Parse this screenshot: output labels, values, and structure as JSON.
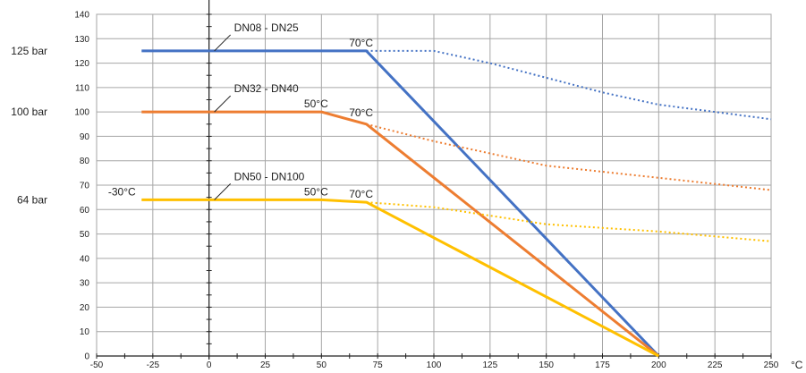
{
  "chart_data": {
    "type": "line",
    "xlabel": "°C",
    "ylabel": "",
    "xlim": [
      -50,
      250
    ],
    "ylim": [
      0,
      140
    ],
    "x_ticks": [
      -50,
      -25,
      0,
      25,
      50,
      75,
      100,
      125,
      150,
      175,
      200,
      225,
      250
    ],
    "y_ticks": [
      0,
      10,
      20,
      30,
      40,
      50,
      60,
      70,
      80,
      90,
      100,
      110,
      120,
      130,
      140
    ],
    "grid": true,
    "pressure_labels": [
      {
        "text": "125 bar",
        "y": 125
      },
      {
        "text": "100 bar",
        "y": 100
      },
      {
        "text": "64 bar",
        "y": 64
      }
    ],
    "series": [
      {
        "name": "DN08 - DN25",
        "color": "#4472C4",
        "style": "solid",
        "points": [
          [
            -30,
            125
          ],
          [
            70,
            125
          ],
          [
            200,
            0
          ]
        ]
      },
      {
        "color": "#4472C4",
        "style": "dotted",
        "points": [
          [
            70,
            125
          ],
          [
            100,
            125
          ],
          [
            125,
            120
          ],
          [
            150,
            114
          ],
          [
            175,
            108
          ],
          [
            200,
            103
          ],
          [
            225,
            100
          ],
          [
            250,
            97
          ]
        ]
      },
      {
        "name": "DN32 - DN40",
        "color": "#ED7D31",
        "style": "solid",
        "points": [
          [
            -30,
            100
          ],
          [
            50,
            100
          ],
          [
            70,
            95
          ],
          [
            200,
            0
          ]
        ]
      },
      {
        "color": "#ED7D31",
        "style": "dotted",
        "points": [
          [
            70,
            95
          ],
          [
            100,
            88
          ],
          [
            125,
            83
          ],
          [
            150,
            78
          ],
          [
            175,
            75.5
          ],
          [
            200,
            73
          ],
          [
            225,
            70.5
          ],
          [
            250,
            68
          ]
        ]
      },
      {
        "name": "DN50 - DN100",
        "color": "#FFC000",
        "style": "solid",
        "points": [
          [
            -30,
            64
          ],
          [
            50,
            64
          ],
          [
            70,
            63
          ],
          [
            200,
            0
          ]
        ]
      },
      {
        "color": "#FFC000",
        "style": "dotted",
        "points": [
          [
            70,
            63
          ],
          [
            100,
            61
          ],
          [
            125,
            57.5
          ],
          [
            150,
            54
          ],
          [
            175,
            52.5
          ],
          [
            200,
            51
          ],
          [
            225,
            49
          ],
          [
            250,
            47
          ]
        ]
      }
    ],
    "annotations": [
      {
        "text": "70°C",
        "x": 70,
        "y": 125
      },
      {
        "text": "50°C",
        "x": 50,
        "y": 100
      },
      {
        "text": "70°C",
        "x": 70,
        "y": 95
      },
      {
        "text": "-30°C",
        "x": -30,
        "y": 64
      },
      {
        "text": "50°C",
        "x": 50,
        "y": 64
      },
      {
        "text": "70°C",
        "x": 70,
        "y": 63
      }
    ],
    "series_labels": [
      {
        "text": "DN08 - DN25",
        "series": 0,
        "anchor_x": 0,
        "anchor_y": 125
      },
      {
        "text": "DN32 - DN40",
        "series": 2,
        "anchor_x": 0,
        "anchor_y": 100
      },
      {
        "text": "DN50 - DN100",
        "series": 4,
        "anchor_x": 0,
        "anchor_y": 64
      }
    ]
  }
}
